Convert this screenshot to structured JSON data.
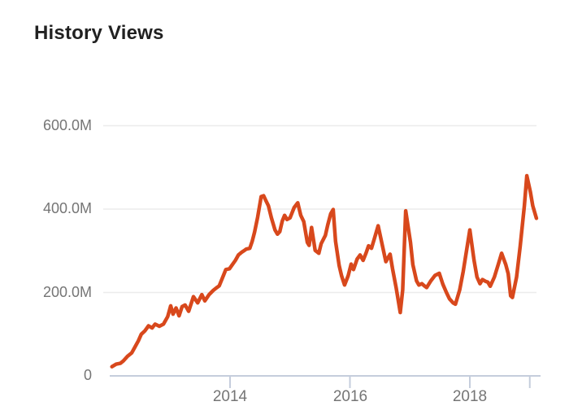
{
  "title": "History Views",
  "background_color": "#ffffff",
  "title_color": "#212121",
  "chart_data": {
    "type": "line",
    "title": "History Views",
    "series_name": "History Views",
    "xlabel": "",
    "ylabel": "",
    "y_unit": "views (millions)",
    "legend": "none",
    "grid": "horizontal",
    "line_color": "#d8481c",
    "grid_color": "#ececec",
    "axis_color": "#c5cddc",
    "tick_label_color": "#757575",
    "ylim": [
      0,
      600
    ],
    "xlim": [
      2011.97,
      2019.19
    ],
    "y_tick_values": [
      0,
      200,
      400,
      600
    ],
    "y_tick_labels": [
      "0",
      "200.0M",
      "400.0M",
      "600.0M"
    ],
    "x_tick_values": [
      2014,
      2016,
      2018
    ],
    "x_tick_labels": [
      "2014",
      "2016",
      "2018"
    ],
    "x_minor_tick_values": [
      2019
    ],
    "points": [
      [
        2012.03,
        22
      ],
      [
        2012.1,
        28
      ],
      [
        2012.17,
        30
      ],
      [
        2012.22,
        36
      ],
      [
        2012.29,
        47
      ],
      [
        2012.36,
        55
      ],
      [
        2012.41,
        68
      ],
      [
        2012.47,
        84
      ],
      [
        2012.52,
        100
      ],
      [
        2012.58,
        108
      ],
      [
        2012.64,
        120
      ],
      [
        2012.7,
        115
      ],
      [
        2012.75,
        124
      ],
      [
        2012.82,
        119
      ],
      [
        2012.89,
        124
      ],
      [
        2012.96,
        142
      ],
      [
        2013.01,
        168
      ],
      [
        2013.05,
        148
      ],
      [
        2013.1,
        163
      ],
      [
        2013.15,
        144
      ],
      [
        2013.2,
        166
      ],
      [
        2013.25,
        170
      ],
      [
        2013.31,
        155
      ],
      [
        2013.39,
        190
      ],
      [
        2013.46,
        175
      ],
      [
        2013.53,
        195
      ],
      [
        2013.58,
        180
      ],
      [
        2013.65,
        195
      ],
      [
        2013.72,
        205
      ],
      [
        2013.78,
        212
      ],
      [
        2013.82,
        216
      ],
      [
        2013.89,
        241
      ],
      [
        2013.93,
        255
      ],
      [
        2013.99,
        257
      ],
      [
        2014.03,
        265
      ],
      [
        2014.09,
        277
      ],
      [
        2014.14,
        290
      ],
      [
        2014.19,
        296
      ],
      [
        2014.23,
        300
      ],
      [
        2014.27,
        304
      ],
      [
        2014.33,
        306
      ],
      [
        2014.37,
        323
      ],
      [
        2014.41,
        345
      ],
      [
        2014.46,
        380
      ],
      [
        2014.52,
        430
      ],
      [
        2014.56,
        432
      ],
      [
        2014.6,
        420
      ],
      [
        2014.64,
        408
      ],
      [
        2014.69,
        379
      ],
      [
        2014.75,
        350
      ],
      [
        2014.79,
        340
      ],
      [
        2014.83,
        346
      ],
      [
        2014.87,
        371
      ],
      [
        2014.91,
        385
      ],
      [
        2014.95,
        375
      ],
      [
        2015.0,
        379
      ],
      [
        2015.07,
        404
      ],
      [
        2015.13,
        415
      ],
      [
        2015.18,
        385
      ],
      [
        2015.23,
        370
      ],
      [
        2015.29,
        320
      ],
      [
        2015.32,
        313
      ],
      [
        2015.36,
        356
      ],
      [
        2015.42,
        301
      ],
      [
        2015.48,
        294
      ],
      [
        2015.52,
        317
      ],
      [
        2015.59,
        337
      ],
      [
        2015.63,
        362
      ],
      [
        2015.68,
        389
      ],
      [
        2015.72,
        399
      ],
      [
        2015.76,
        323
      ],
      [
        2015.82,
        265
      ],
      [
        2015.86,
        240
      ],
      [
        2015.91,
        218
      ],
      [
        2015.97,
        240
      ],
      [
        2016.02,
        268
      ],
      [
        2016.06,
        255
      ],
      [
        2016.12,
        280
      ],
      [
        2016.17,
        290
      ],
      [
        2016.22,
        277
      ],
      [
        2016.27,
        295
      ],
      [
        2016.31,
        312
      ],
      [
        2016.36,
        306
      ],
      [
        2016.41,
        330
      ],
      [
        2016.47,
        360
      ],
      [
        2016.53,
        320
      ],
      [
        2016.6,
        274
      ],
      [
        2016.67,
        292
      ],
      [
        2016.71,
        257
      ],
      [
        2016.77,
        212
      ],
      [
        2016.84,
        152
      ],
      [
        2016.88,
        206
      ],
      [
        2016.93,
        396
      ],
      [
        2017.01,
        320
      ],
      [
        2017.05,
        267
      ],
      [
        2017.11,
        228
      ],
      [
        2017.15,
        218
      ],
      [
        2017.2,
        221
      ],
      [
        2017.24,
        216
      ],
      [
        2017.28,
        212
      ],
      [
        2017.35,
        228
      ],
      [
        2017.42,
        241
      ],
      [
        2017.49,
        246
      ],
      [
        2017.55,
        220
      ],
      [
        2017.61,
        200
      ],
      [
        2017.66,
        185
      ],
      [
        2017.72,
        175
      ],
      [
        2017.76,
        172
      ],
      [
        2017.83,
        206
      ],
      [
        2017.89,
        251
      ],
      [
        2018.0,
        350
      ],
      [
        2018.07,
        277
      ],
      [
        2018.12,
        237
      ],
      [
        2018.17,
        221
      ],
      [
        2018.21,
        231
      ],
      [
        2018.26,
        227
      ],
      [
        2018.3,
        225
      ],
      [
        2018.34,
        215
      ],
      [
        2018.41,
        237
      ],
      [
        2018.48,
        270
      ],
      [
        2018.53,
        294
      ],
      [
        2018.6,
        267
      ],
      [
        2018.64,
        245
      ],
      [
        2018.68,
        192
      ],
      [
        2018.71,
        188
      ],
      [
        2018.78,
        237
      ],
      [
        2018.84,
        310
      ],
      [
        2018.91,
        408
      ],
      [
        2018.95,
        480
      ],
      [
        2019.01,
        441
      ],
      [
        2019.05,
        408
      ],
      [
        2019.11,
        378
      ]
    ]
  }
}
